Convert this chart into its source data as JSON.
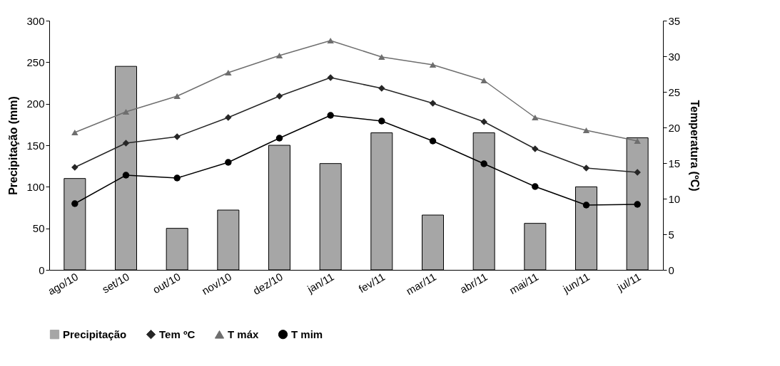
{
  "chart_data": {
    "type": "bar",
    "ylabel": "Precipitação (mm)",
    "y2label": "Temperatura (ºC)",
    "categories": [
      "ago/10",
      "set/10",
      "out/10",
      "nov/10",
      "dez/10",
      "jan/11",
      "fev/11",
      "mar/11",
      "abr/11",
      "mai/11",
      "jun/11",
      "jul/11"
    ],
    "ylim": [
      0,
      300
    ],
    "yticks": [
      0,
      50,
      100,
      150,
      200,
      250,
      300
    ],
    "y2lim": [
      0,
      35
    ],
    "y2ticks": [
      0,
      5,
      10,
      15,
      20,
      25,
      30,
      35
    ],
    "legend": "bottom",
    "grid": false,
    "series": [
      {
        "name": "Precipitação",
        "type": "bar",
        "color": "#a6a6a6",
        "values": [
          110,
          245,
          50,
          72,
          150,
          128,
          165,
          66,
          165,
          56,
          100,
          159
        ]
      },
      {
        "name": "Tem ºC",
        "type": "line",
        "axis": "y2",
        "marker": "diamond",
        "color": "#262626",
        "values": [
          14.4,
          17.8,
          18.7,
          21.4,
          24.4,
          27,
          25.5,
          23.4,
          20.8,
          17,
          14.3,
          13.7
        ]
      },
      {
        "name": "T máx",
        "type": "line",
        "axis": "y2",
        "marker": "triangle",
        "color": "#6e6e6e",
        "values": [
          19.3,
          22.2,
          24.4,
          27.7,
          30.1,
          32.2,
          29.9,
          28.8,
          26.6,
          21.4,
          19.6,
          18.1
        ]
      },
      {
        "name": "T mim",
        "type": "line",
        "axis": "y2",
        "marker": "circle",
        "color": "#000000",
        "values": [
          9.3,
          13.3,
          12.9,
          15.1,
          18.5,
          21.7,
          20.9,
          18.1,
          14.9,
          11.7,
          9.1,
          9.2
        ]
      }
    ]
  }
}
